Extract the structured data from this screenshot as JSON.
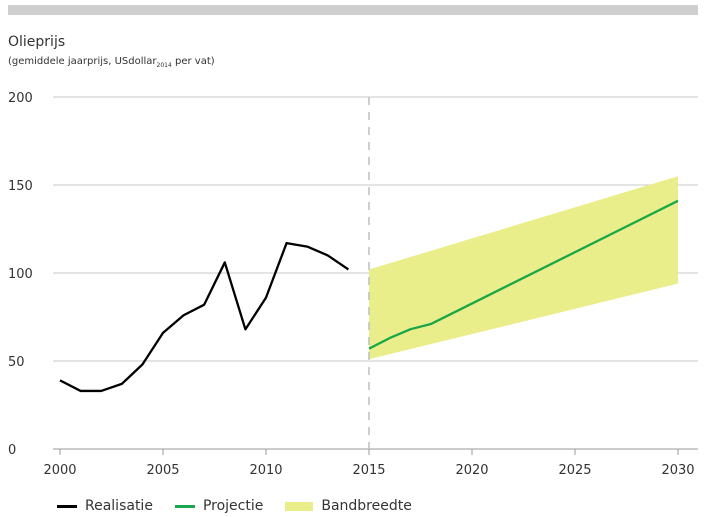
{
  "chart_data": {
    "type": "line",
    "title": "Olieprijs",
    "subtitle_main": "(gemiddele jaarprijs, USdollar",
    "subtitle_sub": "2014",
    "subtitle_end": " per vat)",
    "xlabel": "",
    "ylabel": "",
    "xlim": [
      2000,
      2030
    ],
    "ylim": [
      0,
      200
    ],
    "x_ticks": [
      2000,
      2005,
      2010,
      2015,
      2020,
      2025,
      2030
    ],
    "y_ticks": [
      0,
      50,
      100,
      150,
      200
    ],
    "grid": "horizontal",
    "divider_x": 2015,
    "legend_position": "bottom",
    "series": [
      {
        "name": "Realisatie",
        "color": "#000000",
        "points": [
          [
            2000,
            39
          ],
          [
            2001,
            33
          ],
          [
            2002,
            33
          ],
          [
            2003,
            37
          ],
          [
            2004,
            48
          ],
          [
            2005,
            66
          ],
          [
            2006,
            76
          ],
          [
            2007,
            82
          ],
          [
            2008,
            106
          ],
          [
            2009,
            68
          ],
          [
            2010,
            86
          ],
          [
            2011,
            117
          ],
          [
            2012,
            115
          ],
          [
            2013,
            110
          ],
          [
            2014,
            102
          ]
        ]
      },
      {
        "name": "Projectie",
        "color": "#1aa64a",
        "points": [
          [
            2015,
            57
          ],
          [
            2016,
            63
          ],
          [
            2017,
            68
          ],
          [
            2018,
            71
          ],
          [
            2030,
            141
          ]
        ]
      }
    ],
    "band": {
      "name": "Bandbreedte",
      "color": "#e9ee8a",
      "upper": [
        [
          2015,
          102
        ],
        [
          2030,
          155
        ]
      ],
      "lower": [
        [
          2015,
          51
        ],
        [
          2030,
          94
        ]
      ]
    }
  }
}
